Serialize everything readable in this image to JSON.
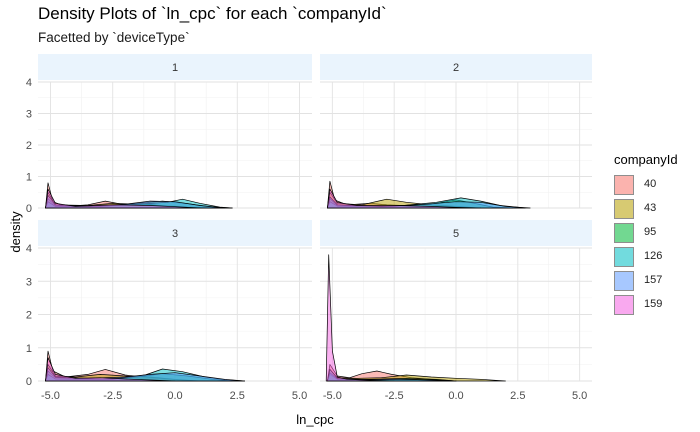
{
  "title": "Density Plots of `ln_cpc` for each `companyId`",
  "subtitle": "Facetted by `deviceType`",
  "legend": {
    "title": "companyId",
    "items": [
      {
        "label": "40",
        "color": "#F8766D"
      },
      {
        "label": "43",
        "color": "#B79F00"
      },
      {
        "label": "95",
        "color": "#00BA38"
      },
      {
        "label": "126",
        "color": "#00BFC4"
      },
      {
        "label": "157",
        "color": "#619CFF"
      },
      {
        "label": "159",
        "color": "#F564E3"
      }
    ]
  },
  "chart_data": {
    "type": "area",
    "chart_style": "faceted density plot",
    "xlabel": "ln_cpc",
    "ylabel": "density",
    "xlim": [
      -5.5,
      5.5
    ],
    "ylim": [
      0,
      4
    ],
    "x_ticks": [
      -5.0,
      -2.5,
      0.0,
      2.5,
      5.0
    ],
    "x_tick_labels": [
      "-5.0",
      "-2.5",
      "0.0",
      "2.5",
      "5.0"
    ],
    "y_ticks": [
      0,
      1,
      2,
      3,
      4
    ],
    "y_tick_labels": [
      "0",
      "1",
      "2",
      "3",
      "4"
    ],
    "grid": true,
    "legend_position": "right",
    "facets": [
      {
        "label": "1",
        "series": [
          {
            "name": "40",
            "points": [
              [
                -5.2,
                0
              ],
              [
                -5.1,
                0.8
              ],
              [
                -4.9,
                0.2
              ],
              [
                -4.4,
                0.05
              ],
              [
                -3.5,
                0.1
              ],
              [
                -2.8,
                0.22
              ],
              [
                -2.0,
                0.1
              ],
              [
                -1.0,
                0.12
              ],
              [
                -0.5,
                0.05
              ],
              [
                0.3,
                0.02
              ],
              [
                1.0,
                0
              ]
            ]
          },
          {
            "name": "43",
            "points": [
              [
                -5.2,
                0
              ],
              [
                -5.1,
                0.5
              ],
              [
                -4.8,
                0.1
              ],
              [
                -3.5,
                0.08
              ],
              [
                -2.5,
                0.15
              ],
              [
                -1.5,
                0.12
              ],
              [
                -0.5,
                0.08
              ],
              [
                0.5,
                0.03
              ],
              [
                1.5,
                0
              ]
            ]
          },
          {
            "name": "95",
            "points": [
              [
                -5.2,
                0
              ],
              [
                -5.1,
                0.3
              ],
              [
                -4.8,
                0.08
              ],
              [
                -3.0,
                0.05
              ],
              [
                -1.5,
                0.15
              ],
              [
                -0.5,
                0.22
              ],
              [
                0.5,
                0.14
              ],
              [
                1.5,
                0.03
              ],
              [
                2.3,
                0
              ]
            ]
          },
          {
            "name": "126",
            "points": [
              [
                -5.2,
                0
              ],
              [
                -5.1,
                0.2
              ],
              [
                -4.8,
                0.05
              ],
              [
                -3.0,
                0.05
              ],
              [
                -1.5,
                0.12
              ],
              [
                -0.3,
                0.18
              ],
              [
                0.3,
                0.28
              ],
              [
                1.0,
                0.15
              ],
              [
                1.8,
                0.03
              ],
              [
                2.3,
                0
              ]
            ]
          },
          {
            "name": "157",
            "points": [
              [
                -5.2,
                0
              ],
              [
                -5.1,
                0.4
              ],
              [
                -4.8,
                0.1
              ],
              [
                -3.5,
                0.06
              ],
              [
                -2.0,
                0.12
              ],
              [
                -1.0,
                0.22
              ],
              [
                0.0,
                0.2
              ],
              [
                1.0,
                0.08
              ],
              [
                2.0,
                0
              ]
            ]
          },
          {
            "name": "159",
            "points": [
              [
                -5.2,
                0
              ],
              [
                -5.1,
                0.6
              ],
              [
                -4.8,
                0.15
              ],
              [
                -4.0,
                0.05
              ],
              [
                -2.5,
                0.1
              ],
              [
                -1.0,
                0.08
              ],
              [
                0.0,
                0.04
              ],
              [
                1.0,
                0
              ]
            ]
          }
        ]
      },
      {
        "label": "2",
        "series": [
          {
            "name": "40",
            "points": [
              [
                -5.2,
                0
              ],
              [
                -5.1,
                0.85
              ],
              [
                -4.9,
                0.25
              ],
              [
                -4.4,
                0.1
              ],
              [
                -3.5,
                0.15
              ],
              [
                -2.8,
                0.1
              ],
              [
                -1.5,
                0.06
              ],
              [
                0.0,
                0.02
              ],
              [
                0.5,
                0
              ]
            ]
          },
          {
            "name": "43",
            "points": [
              [
                -5.2,
                0
              ],
              [
                -5.1,
                0.5
              ],
              [
                -4.8,
                0.15
              ],
              [
                -3.8,
                0.1
              ],
              [
                -2.8,
                0.28
              ],
              [
                -2.0,
                0.18
              ],
              [
                -1.0,
                0.1
              ],
              [
                0.0,
                0.05
              ],
              [
                1.0,
                0
              ]
            ]
          },
          {
            "name": "95",
            "points": [
              [
                -5.2,
                0
              ],
              [
                -5.1,
                0.3
              ],
              [
                -4.8,
                0.08
              ],
              [
                -3.0,
                0.05
              ],
              [
                -1.0,
                0.12
              ],
              [
                0.0,
                0.26
              ],
              [
                0.8,
                0.14
              ],
              [
                1.5,
                0.03
              ],
              [
                2.3,
                0
              ]
            ]
          },
          {
            "name": "126",
            "points": [
              [
                -5.2,
                0
              ],
              [
                -5.1,
                0.2
              ],
              [
                -4.8,
                0.06
              ],
              [
                -2.5,
                0.05
              ],
              [
                -0.8,
                0.18
              ],
              [
                0.2,
                0.32
              ],
              [
                1.0,
                0.22
              ],
              [
                1.8,
                0.08
              ],
              [
                2.8,
                0
              ]
            ]
          },
          {
            "name": "157",
            "points": [
              [
                -5.2,
                0
              ],
              [
                -5.1,
                0.35
              ],
              [
                -4.8,
                0.1
              ],
              [
                -3.0,
                0.05
              ],
              [
                -1.5,
                0.1
              ],
              [
                0.0,
                0.2
              ],
              [
                1.0,
                0.18
              ],
              [
                2.0,
                0.05
              ],
              [
                3.0,
                0
              ]
            ]
          },
          {
            "name": "159",
            "points": [
              [
                -5.2,
                0
              ],
              [
                -5.1,
                0.6
              ],
              [
                -4.8,
                0.18
              ],
              [
                -4.0,
                0.08
              ],
              [
                -2.5,
                0.08
              ],
              [
                -1.0,
                0.05
              ],
              [
                0.0,
                0.02
              ],
              [
                1.0,
                0
              ]
            ]
          }
        ]
      },
      {
        "label": "3",
        "series": [
          {
            "name": "40",
            "points": [
              [
                -5.2,
                0
              ],
              [
                -5.1,
                0.9
              ],
              [
                -4.9,
                0.3
              ],
              [
                -4.4,
                0.12
              ],
              [
                -3.5,
                0.2
              ],
              [
                -2.8,
                0.35
              ],
              [
                -2.0,
                0.18
              ],
              [
                -1.0,
                0.1
              ],
              [
                0.0,
                0.04
              ],
              [
                0.8,
                0
              ]
            ]
          },
          {
            "name": "43",
            "points": [
              [
                -5.2,
                0
              ],
              [
                -5.1,
                0.5
              ],
              [
                -4.8,
                0.15
              ],
              [
                -4.0,
                0.12
              ],
              [
                -3.0,
                0.2
              ],
              [
                -2.0,
                0.15
              ],
              [
                -1.0,
                0.12
              ],
              [
                0.0,
                0.05
              ],
              [
                1.0,
                0
              ]
            ]
          },
          {
            "name": "95",
            "points": [
              [
                -5.2,
                0
              ],
              [
                -5.1,
                0.3
              ],
              [
                -4.8,
                0.1
              ],
              [
                -3.0,
                0.05
              ],
              [
                -1.5,
                0.12
              ],
              [
                -0.5,
                0.22
              ],
              [
                0.5,
                0.15
              ],
              [
                1.5,
                0.05
              ],
              [
                2.3,
                0
              ]
            ]
          },
          {
            "name": "126",
            "points": [
              [
                -5.2,
                0
              ],
              [
                -5.1,
                0.2
              ],
              [
                -4.8,
                0.06
              ],
              [
                -2.5,
                0.05
              ],
              [
                -1.2,
                0.18
              ],
              [
                -0.5,
                0.36
              ],
              [
                0.3,
                0.28
              ],
              [
                1.2,
                0.12
              ],
              [
                2.0,
                0.04
              ],
              [
                2.8,
                0
              ]
            ]
          },
          {
            "name": "157",
            "points": [
              [
                -5.2,
                0
              ],
              [
                -5.1,
                0.4
              ],
              [
                -4.8,
                0.12
              ],
              [
                -3.5,
                0.08
              ],
              [
                -2.0,
                0.12
              ],
              [
                -1.0,
                0.2
              ],
              [
                0.0,
                0.25
              ],
              [
                1.0,
                0.15
              ],
              [
                2.0,
                0.05
              ],
              [
                2.8,
                0
              ]
            ]
          },
          {
            "name": "159",
            "points": [
              [
                -5.2,
                0
              ],
              [
                -5.1,
                0.7
              ],
              [
                -4.8,
                0.2
              ],
              [
                -4.0,
                0.08
              ],
              [
                -3.0,
                0.1
              ],
              [
                -2.0,
                0.06
              ],
              [
                -1.0,
                0.03
              ],
              [
                0.0,
                0
              ]
            ]
          }
        ]
      },
      {
        "label": "5",
        "series": [
          {
            "name": "40",
            "points": [
              [
                -5.2,
                0
              ],
              [
                -5.1,
                0.5
              ],
              [
                -4.8,
                0.15
              ],
              [
                -4.3,
                0.1
              ],
              [
                -3.8,
                0.22
              ],
              [
                -3.2,
                0.3
              ],
              [
                -2.6,
                0.2
              ],
              [
                -1.8,
                0.1
              ],
              [
                -1.0,
                0.05
              ],
              [
                0.0,
                0
              ]
            ]
          },
          {
            "name": "43",
            "points": [
              [
                -5.2,
                0
              ],
              [
                -5.1,
                0.35
              ],
              [
                -4.8,
                0.1
              ],
              [
                -4.0,
                0.08
              ],
              [
                -3.0,
                0.1
              ],
              [
                -2.0,
                0.18
              ],
              [
                -1.0,
                0.12
              ],
              [
                0.0,
                0.08
              ],
              [
                1.0,
                0.05
              ],
              [
                2.0,
                0
              ]
            ]
          },
          {
            "name": "95",
            "points": [
              [
                -5.2,
                0
              ],
              [
                -5.1,
                0.2
              ],
              [
                -4.8,
                0.05
              ],
              [
                -3.5,
                0.05
              ],
              [
                -2.0,
                0.08
              ],
              [
                -0.8,
                0.05
              ],
              [
                0.0,
                0
              ]
            ]
          },
          {
            "name": "126",
            "points": [
              [
                -5.2,
                0
              ],
              [
                -5.1,
                0.25
              ],
              [
                -4.8,
                0.06
              ],
              [
                -3.5,
                0.03
              ],
              [
                -2.0,
                0.05
              ],
              [
                -1.0,
                0.03
              ],
              [
                0.0,
                0
              ]
            ]
          },
          {
            "name": "157",
            "points": [
              [
                -5.2,
                0
              ],
              [
                -5.1,
                0.35
              ],
              [
                -4.8,
                0.08
              ],
              [
                -3.5,
                0.04
              ],
              [
                -2.5,
                0.06
              ],
              [
                -1.0,
                0.03
              ],
              [
                0.0,
                0
              ]
            ]
          },
          {
            "name": "159",
            "points": [
              [
                -5.25,
                0
              ],
              [
                -5.15,
                3.8
              ],
              [
                -5.0,
                0.9
              ],
              [
                -4.8,
                0.12
              ],
              [
                -4.4,
                0.05
              ],
              [
                -3.5,
                0.02
              ],
              [
                -2.5,
                0
              ]
            ]
          }
        ]
      }
    ]
  }
}
